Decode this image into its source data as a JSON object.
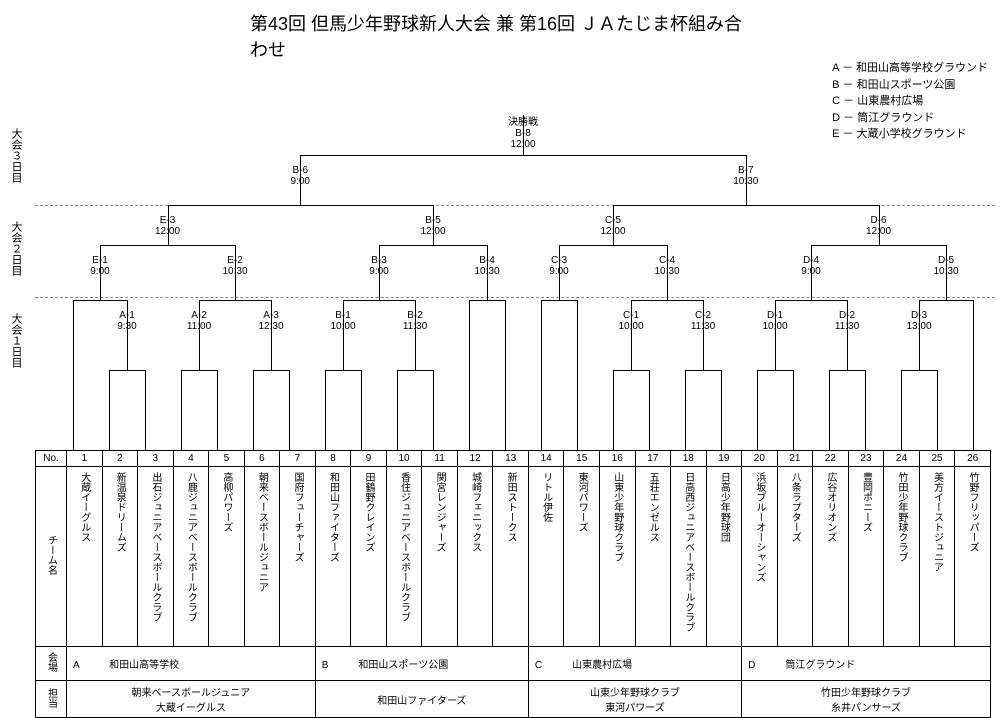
{
  "title": "第43回 但馬少年野球新人大会 兼 第16回 ＪＡたじま杯組み合わせ",
  "legend": [
    "A － 和田山高等学校グラウンド",
    "B － 和田山スポーツ公園",
    "C － 山東農村広場",
    "D － 筒江グラウンド",
    "E － 大蔵小学校グラウンド"
  ],
  "side_labels": {
    "day3": "大会３日目",
    "day2": "大会２日目",
    "day1": "大会１日目",
    "no": "No.",
    "team": "チーム名",
    "venue": "会場",
    "org": "担当"
  },
  "final": {
    "label": "決勝戦",
    "code": "B-8",
    "time": "12:00"
  },
  "semi": [
    {
      "code": "B-6",
      "time": "9:00"
    },
    {
      "code": "B-7",
      "time": "10:30"
    }
  ],
  "qf": [
    {
      "code": "E-3",
      "time": "12:00"
    },
    {
      "code": "B-5",
      "time": "12:00"
    },
    {
      "code": "C-5",
      "time": "12:00"
    },
    {
      "code": "D-6",
      "time": "12:00"
    }
  ],
  "r2": [
    {
      "code": "E-1",
      "time": "9:00"
    },
    {
      "code": "E-2",
      "time": "10:30"
    },
    {
      "code": "B-3",
      "time": "9:00"
    },
    {
      "code": "B-4",
      "time": "10:30"
    },
    {
      "code": "C-3",
      "time": "9:00"
    },
    {
      "code": "C-4",
      "time": "10:30"
    },
    {
      "code": "D-4",
      "time": "9:00"
    },
    {
      "code": "D-5",
      "time": "10:30"
    }
  ],
  "r1": [
    {
      "code": "A-1",
      "time": "9:30"
    },
    {
      "code": "A-2",
      "time": "11:00"
    },
    {
      "code": "A-3",
      "time": "12:30"
    },
    {
      "code": "B-1",
      "time": "10:00"
    },
    {
      "code": "B-2",
      "time": "11:30"
    },
    {
      "code": "C-1",
      "time": "10:00"
    },
    {
      "code": "C-2",
      "time": "11:30"
    },
    {
      "code": "D-1",
      "time": "10:00"
    },
    {
      "code": "D-2",
      "time": "11:30"
    },
    {
      "code": "D-3",
      "time": "13:00"
    }
  ],
  "teams": [
    "大蔵イーグルス",
    "新温泉ドリームズ",
    "出石ジュニアベースボールクラブ",
    "八鹿ジュニアベースボールクラブ",
    "高柳パワーズ",
    "朝来ベースボールジュニア",
    "国府フューチャーズ",
    "和田山ファイターズ",
    "田鶴野クレインズ",
    "香住ジュニアベースボールクラブ",
    "関宮レンジャーズ",
    "城崎フェニックス",
    "新田ストークス",
    "リトル伊佐",
    "東河パワーズ",
    "山東少年野球クラブ",
    "五荘エンゼルス",
    "日高西ジュニアベースボールクラブ",
    "日高少年野球団",
    "浜坂ブルーオーシャンズ",
    "八条ラプターズ",
    "広谷オリオンズ",
    "豊岡ポニーズ",
    "竹田少年野球クラブ",
    "美方イーストジュニア",
    "竹野フリッパーズ"
  ],
  "venues": [
    {
      "letter": "A",
      "name": "和田山高等学校",
      "span": 7
    },
    {
      "letter": "B",
      "name": "和田山スポーツ公園",
      "span": 6
    },
    {
      "letter": "C",
      "name": "山東農村広場",
      "span": 6
    },
    {
      "letter": "D",
      "name": "筒江グラウンド",
      "span": 7
    }
  ],
  "orgs": [
    {
      "name": "朝来ベースボールジュニア\n大蔵イーグルス",
      "span": 7
    },
    {
      "name": "和田山ファイターズ",
      "span": 6
    },
    {
      "name": "山東少年野球クラブ\n東河パワーズ",
      "span": 6
    },
    {
      "name": "竹田少年野球クラブ\n糸井パンサーズ",
      "span": 7
    }
  ]
}
